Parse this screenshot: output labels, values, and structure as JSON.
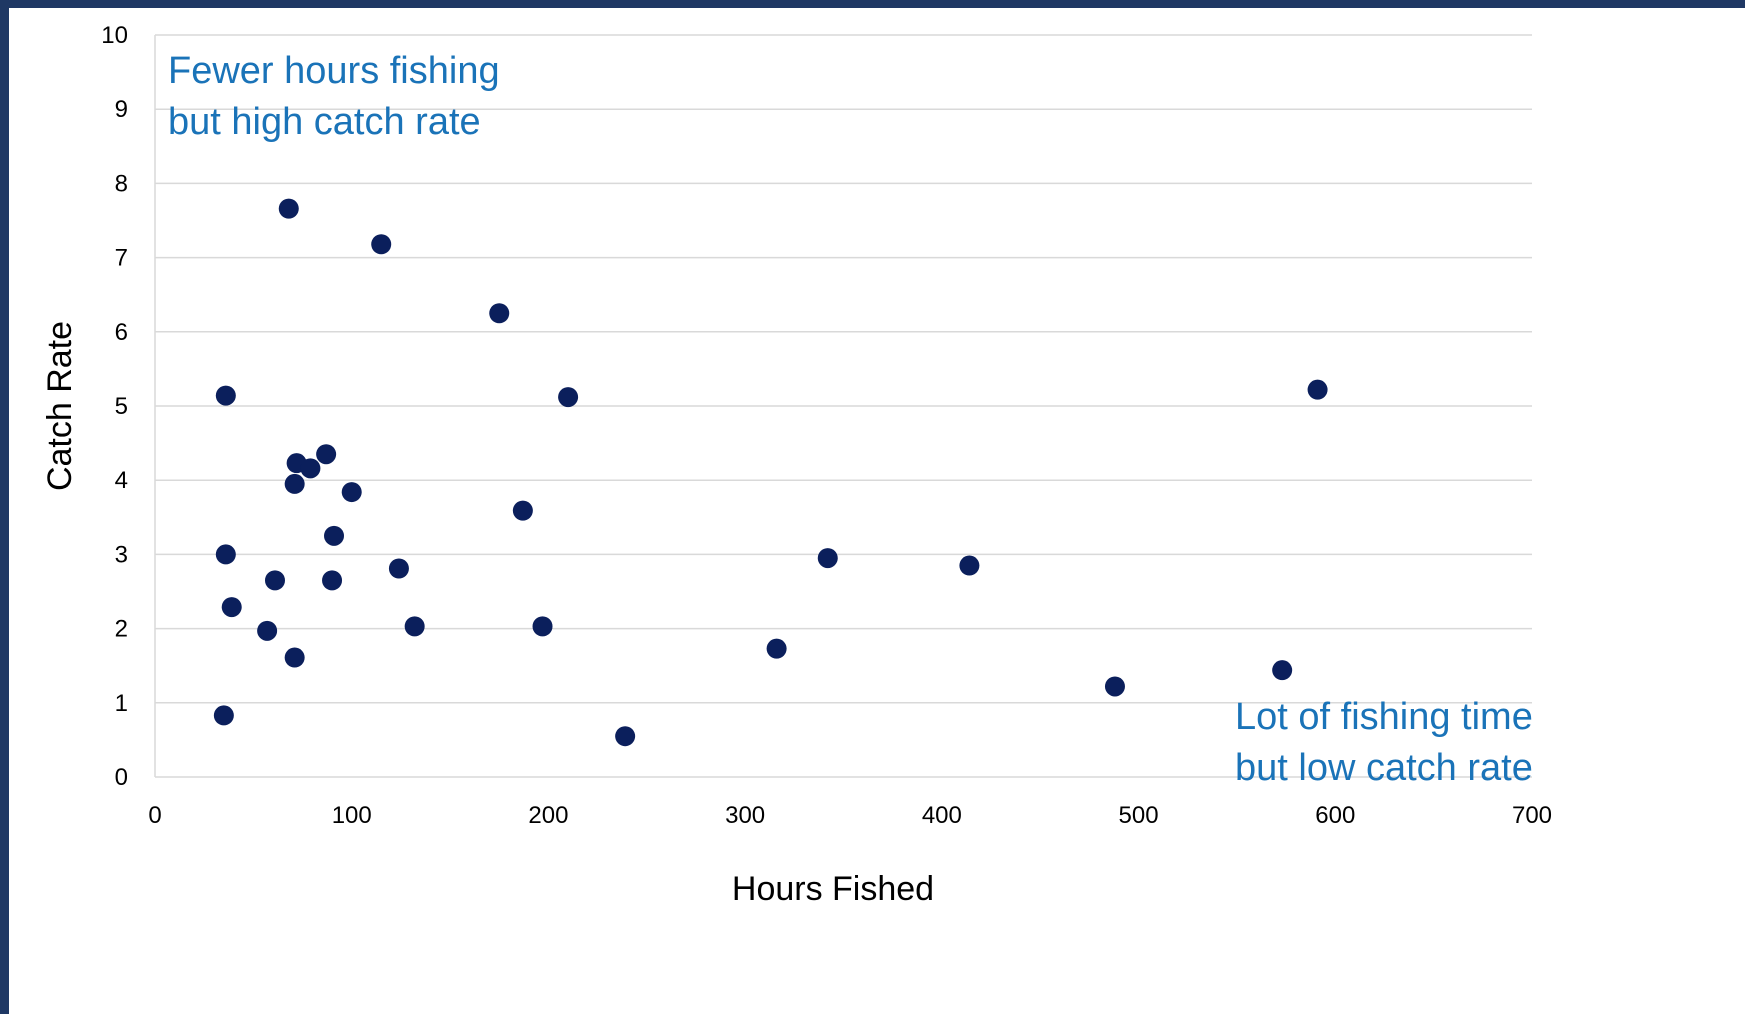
{
  "colors": {
    "frame": "#1f3864",
    "point": "#0b1f5c",
    "grid": "#d9d9d9",
    "annotation": "#1a73b8"
  },
  "chart_data": {
    "type": "scatter",
    "title": "",
    "xlabel": "Hours Fished",
    "ylabel": "Catch Rate",
    "xlim": [
      0,
      700
    ],
    "ylim": [
      0,
      10
    ],
    "x_ticks": [
      0,
      100,
      200,
      300,
      400,
      500,
      600,
      700
    ],
    "y_ticks": [
      0,
      1,
      2,
      3,
      4,
      5,
      6,
      7,
      8,
      9,
      10
    ],
    "grid": "horizontal",
    "legend": "none",
    "series": [
      {
        "points": [
          {
            "x": 68,
            "y": 7.66
          },
          {
            "x": 115,
            "y": 7.18
          },
          {
            "x": 175,
            "y": 6.25
          },
          {
            "x": 36,
            "y": 5.14
          },
          {
            "x": 210,
            "y": 5.12
          },
          {
            "x": 591,
            "y": 5.22
          },
          {
            "x": 87,
            "y": 4.35
          },
          {
            "x": 72,
            "y": 4.23
          },
          {
            "x": 79,
            "y": 4.16
          },
          {
            "x": 71,
            "y": 3.95
          },
          {
            "x": 100,
            "y": 3.84
          },
          {
            "x": 187,
            "y": 3.59
          },
          {
            "x": 91,
            "y": 3.25
          },
          {
            "x": 36,
            "y": 3.0
          },
          {
            "x": 342,
            "y": 2.95
          },
          {
            "x": 414,
            "y": 2.85
          },
          {
            "x": 124,
            "y": 2.81
          },
          {
            "x": 61,
            "y": 2.65
          },
          {
            "x": 90,
            "y": 2.65
          },
          {
            "x": 39,
            "y": 2.29
          },
          {
            "x": 132,
            "y": 2.03
          },
          {
            "x": 197,
            "y": 2.03
          },
          {
            "x": 57,
            "y": 1.97
          },
          {
            "x": 316,
            "y": 1.73
          },
          {
            "x": 71,
            "y": 1.61
          },
          {
            "x": 573,
            "y": 1.44
          },
          {
            "x": 488,
            "y": 1.22
          },
          {
            "x": 35,
            "y": 0.83
          },
          {
            "x": 239,
            "y": 0.55
          }
        ]
      }
    ],
    "annotations": [
      {
        "lines": [
          "Fewer hours fishing",
          "but high catch rate"
        ],
        "position": "top-left"
      },
      {
        "lines": [
          "Lot of fishing time",
          "but low catch rate"
        ],
        "position": "bottom-right"
      }
    ]
  }
}
